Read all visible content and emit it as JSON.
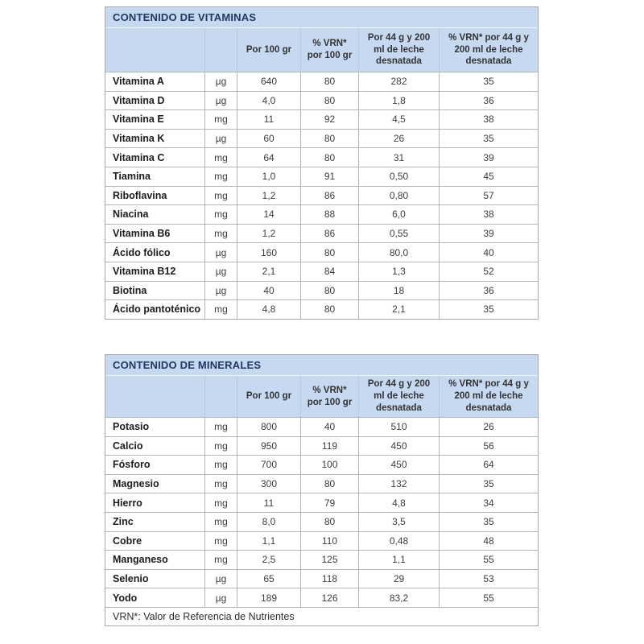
{
  "columns": {
    "per100": "Por 100 gr",
    "vrn100": "% VRN*\npor 100 gr",
    "per44": "Por 44 g y 200\nml de leche\ndesnatada",
    "vrn44": "% VRN* por 44 g y\n200 ml de leche\ndesnatada"
  },
  "vitamins": {
    "title": "CONTENIDO DE VITAMINAS",
    "rows": [
      {
        "name": "Vitamina A",
        "unit": "µg",
        "per100": "640",
        "vrn100": "80",
        "per44": "282",
        "vrn44": "35"
      },
      {
        "name": "Vitamina D",
        "unit": "µg",
        "per100": "4,0",
        "vrn100": "80",
        "per44": "1,8",
        "vrn44": "36"
      },
      {
        "name": "Vitamina E",
        "unit": "mg",
        "per100": "11",
        "vrn100": "92",
        "per44": "4,5",
        "vrn44": "38"
      },
      {
        "name": "Vitamina K",
        "unit": "µg",
        "per100": "60",
        "vrn100": "80",
        "per44": "26",
        "vrn44": "35"
      },
      {
        "name": "Vitamina C",
        "unit": "mg",
        "per100": "64",
        "vrn100": "80",
        "per44": "31",
        "vrn44": "39"
      },
      {
        "name": "Tiamina",
        "unit": "mg",
        "per100": "1,0",
        "vrn100": "91",
        "per44": "0,50",
        "vrn44": "45"
      },
      {
        "name": "Riboflavina",
        "unit": "mg",
        "per100": "1,2",
        "vrn100": "86",
        "per44": "0,80",
        "vrn44": "57"
      },
      {
        "name": "Niacina",
        "unit": "mg",
        "per100": "14",
        "vrn100": "88",
        "per44": "6,0",
        "vrn44": "38"
      },
      {
        "name": "Vitamina B6",
        "unit": "mg",
        "per100": "1,2",
        "vrn100": "86",
        "per44": "0,55",
        "vrn44": "39"
      },
      {
        "name": "Ácido fólico",
        "unit": "µg",
        "per100": "160",
        "vrn100": "80",
        "per44": "80,0",
        "vrn44": "40"
      },
      {
        "name": "Vitamina B12",
        "unit": "µg",
        "per100": "2,1",
        "vrn100": "84",
        "per44": "1,3",
        "vrn44": "52"
      },
      {
        "name": "Biotina",
        "unit": "µg",
        "per100": "40",
        "vrn100": "80",
        "per44": "18",
        "vrn44": "36"
      },
      {
        "name": "Ácido pantoténico",
        "unit": "mg",
        "per100": "4,8",
        "vrn100": "80",
        "per44": "2,1",
        "vrn44": "35"
      }
    ]
  },
  "minerals": {
    "title": "CONTENIDO DE MINERALES",
    "rows": [
      {
        "name": "Potasio",
        "unit": "mg",
        "per100": "800",
        "vrn100": "40",
        "per44": "510",
        "vrn44": "26"
      },
      {
        "name": "Calcio",
        "unit": "mg",
        "per100": "950",
        "vrn100": "119",
        "per44": "450",
        "vrn44": "56"
      },
      {
        "name": "Fósforo",
        "unit": "mg",
        "per100": "700",
        "vrn100": "100",
        "per44": "450",
        "vrn44": "64"
      },
      {
        "name": "Magnesio",
        "unit": "mg",
        "per100": "300",
        "vrn100": "80",
        "per44": "132",
        "vrn44": "35"
      },
      {
        "name": "Hierro",
        "unit": "mg",
        "per100": "11",
        "vrn100": "79",
        "per44": "4,8",
        "vrn44": "34"
      },
      {
        "name": "Zinc",
        "unit": "mg",
        "per100": "8,0",
        "vrn100": "80",
        "per44": "3,5",
        "vrn44": "35"
      },
      {
        "name": "Cobre",
        "unit": "mg",
        "per100": "1,1",
        "vrn100": "110",
        "per44": "0,48",
        "vrn44": "48"
      },
      {
        "name": "Manganeso",
        "unit": "mg",
        "per100": "2,5",
        "vrn100": "125",
        "per44": "1,1",
        "vrn44": "55"
      },
      {
        "name": "Selenio",
        "unit": "µg",
        "per100": "65",
        "vrn100": "118",
        "per44": "29",
        "vrn44": "53"
      },
      {
        "name": "Yodo",
        "unit": "µg",
        "per100": "189",
        "vrn100": "126",
        "per44": "83,2",
        "vrn44": "55"
      }
    ],
    "footnote": "VRN*: Valor de Referencia de Nutrientes"
  },
  "colors": {
    "header_bg": "#c6d9f0",
    "title_text": "#1f3864",
    "border": "#b5b5b5"
  }
}
